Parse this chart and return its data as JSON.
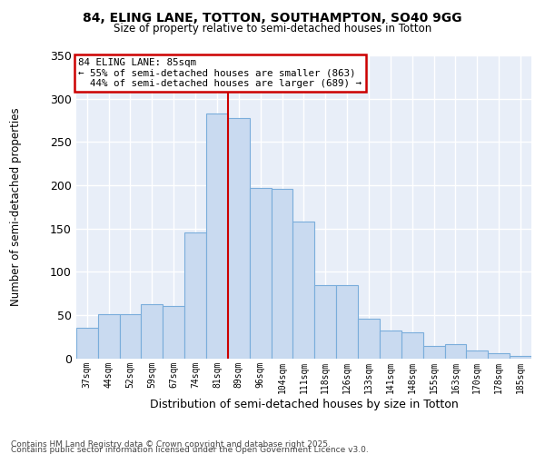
{
  "title1": "84, ELING LANE, TOTTON, SOUTHAMPTON, SO40 9GG",
  "title2": "Size of property relative to semi-detached houses in Totton",
  "xlabel": "Distribution of semi-detached houses by size in Totton",
  "ylabel": "Number of semi-detached properties",
  "bar_labels": [
    "37sqm",
    "44sqm",
    "52sqm",
    "59sqm",
    "67sqm",
    "74sqm",
    "81sqm",
    "89sqm",
    "96sqm",
    "104sqm",
    "111sqm",
    "118sqm",
    "126sqm",
    "133sqm",
    "141sqm",
    "148sqm",
    "155sqm",
    "163sqm",
    "170sqm",
    "178sqm",
    "185sqm"
  ],
  "bar_values": [
    35,
    51,
    51,
    62,
    60,
    145,
    283,
    278,
    197,
    196,
    158,
    85,
    85,
    46,
    32,
    30,
    14,
    16,
    9,
    6,
    3
  ],
  "bar_color": "#c9daf0",
  "bar_edge_color": "#7aaddb",
  "bg_color": "#e8eef8",
  "grid_color": "#ffffff",
  "property_sqm": 85,
  "pct_smaller": 55,
  "pct_larger": 44,
  "n_smaller": 863,
  "n_larger": 689,
  "vline_color": "#cc0000",
  "annotation_box_edgecolor": "#cc0000",
  "footer1": "Contains HM Land Registry data © Crown copyright and database right 2025.",
  "footer2": "Contains public sector information licensed under the Open Government Licence v3.0.",
  "ylim": [
    0,
    350
  ],
  "yticks": [
    0,
    50,
    100,
    150,
    200,
    250,
    300,
    350
  ]
}
